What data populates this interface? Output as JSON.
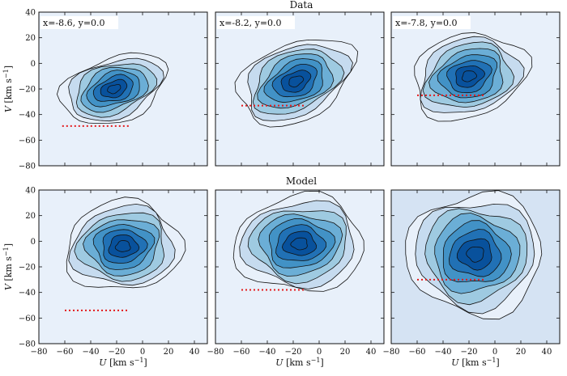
{
  "figure": {
    "row_titles": [
      "Data",
      "Model"
    ]
  },
  "chart_data": {
    "type": "contour",
    "xlabel": "U [km s⁻¹]",
    "ylabel": "V [km s⁻¹]",
    "xlim": [
      -80,
      50
    ],
    "ylim": [
      -80,
      40
    ],
    "xticks": [
      -80,
      -60,
      -40,
      -20,
      0,
      20,
      40
    ],
    "yticks": [
      -80,
      -60,
      -40,
      -20,
      0,
      20,
      40
    ],
    "panels": [
      {
        "row": "Data",
        "col": 0,
        "label": "x=-8.6, y=0.0",
        "peak": {
          "u": -22,
          "v": -20,
          "su": 34,
          "sv": 20,
          "tilt": 0.35
        },
        "dotted_line": {
          "u_start": -62,
          "u_end": -10,
          "v": -49
        },
        "background": "#e8f0fa"
      },
      {
        "row": "Data",
        "col": 1,
        "label": "x=-8.2, y=0.0",
        "peak": {
          "u": -18,
          "v": -14,
          "su": 38,
          "sv": 24,
          "tilt": 0.45
        },
        "dotted_line": {
          "u_start": -60,
          "u_end": -10,
          "v": -33
        },
        "background": "#e8f0fa"
      },
      {
        "row": "Data",
        "col": 2,
        "label": "x=-7.8, y=0.0",
        "peak": {
          "u": -20,
          "v": -10,
          "su": 36,
          "sv": 26,
          "tilt": 0.3
        },
        "dotted_line": {
          "u_start": -60,
          "u_end": -8,
          "v": -25
        },
        "background": "#e8f0fa"
      },
      {
        "row": "Model",
        "col": 0,
        "label": "",
        "peak": {
          "u": -15,
          "v": -4,
          "su": 36,
          "sv": 28,
          "tilt": 0.1
        },
        "dotted_line": {
          "u_start": -60,
          "u_end": -10,
          "v": -54
        },
        "background": "#e8f0fa"
      },
      {
        "row": "Model",
        "col": 1,
        "label": "",
        "peak": {
          "u": -15,
          "v": -2,
          "su": 40,
          "sv": 30,
          "tilt": 0.05
        },
        "dotted_line": {
          "u_start": -60,
          "u_end": -10,
          "v": -38
        },
        "background": "#e8f0fa"
      },
      {
        "row": "Model",
        "col": 2,
        "label": "",
        "peak": {
          "u": -15,
          "v": -10,
          "su": 42,
          "sv": 38,
          "tilt": 0.0
        },
        "dotted_line": {
          "u_start": -60,
          "u_end": -8,
          "v": -30
        },
        "background": "#d5e3f3"
      }
    ],
    "contour_fills": [
      "#e8f0fa",
      "#c6dbef",
      "#9ecae1",
      "#6baed6",
      "#4292c6",
      "#2171b5",
      "#08519c"
    ],
    "contour_levels": 8,
    "dotted_line_color": "#e31a1c"
  }
}
